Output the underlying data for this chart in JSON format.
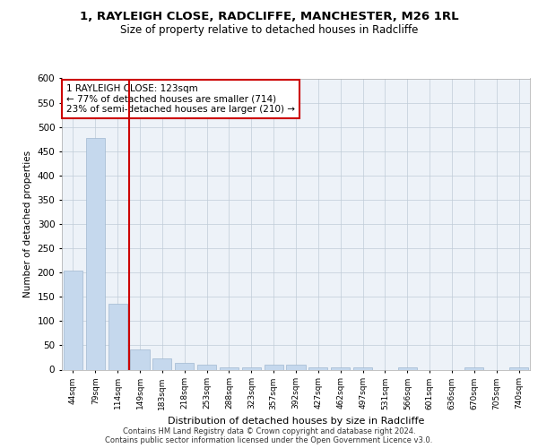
{
  "title_line1": "1, RAYLEIGH CLOSE, RADCLIFFE, MANCHESTER, M26 1RL",
  "title_line2": "Size of property relative to detached houses in Radcliffe",
  "xlabel": "Distribution of detached houses by size in Radcliffe",
  "ylabel": "Number of detached properties",
  "footer_line1": "Contains HM Land Registry data © Crown copyright and database right 2024.",
  "footer_line2": "Contains public sector information licensed under the Open Government Licence v3.0.",
  "annotation_line1": "1 RAYLEIGH CLOSE: 123sqm",
  "annotation_line2": "← 77% of detached houses are smaller (714)",
  "annotation_line3": "23% of semi-detached houses are larger (210) →",
  "bar_color": "#c5d8ed",
  "bar_edge_color": "#a0b8d0",
  "vline_color": "#cc0000",
  "vline_x": 2.5,
  "annotation_box_edge_color": "#cc0000",
  "categories": [
    "44sqm",
    "79sqm",
    "114sqm",
    "149sqm",
    "183sqm",
    "218sqm",
    "253sqm",
    "288sqm",
    "323sqm",
    "357sqm",
    "392sqm",
    "427sqm",
    "462sqm",
    "497sqm",
    "531sqm",
    "566sqm",
    "601sqm",
    "636sqm",
    "670sqm",
    "705sqm",
    "740sqm"
  ],
  "values": [
    204,
    477,
    135,
    42,
    24,
    14,
    11,
    5,
    5,
    10,
    10,
    5,
    5,
    5,
    0,
    5,
    0,
    0,
    5,
    0,
    5
  ],
  "ylim": [
    0,
    600
  ],
  "yticks": [
    0,
    50,
    100,
    150,
    200,
    250,
    300,
    350,
    400,
    450,
    500,
    550,
    600
  ],
  "plot_bg_color": "#edf2f8"
}
